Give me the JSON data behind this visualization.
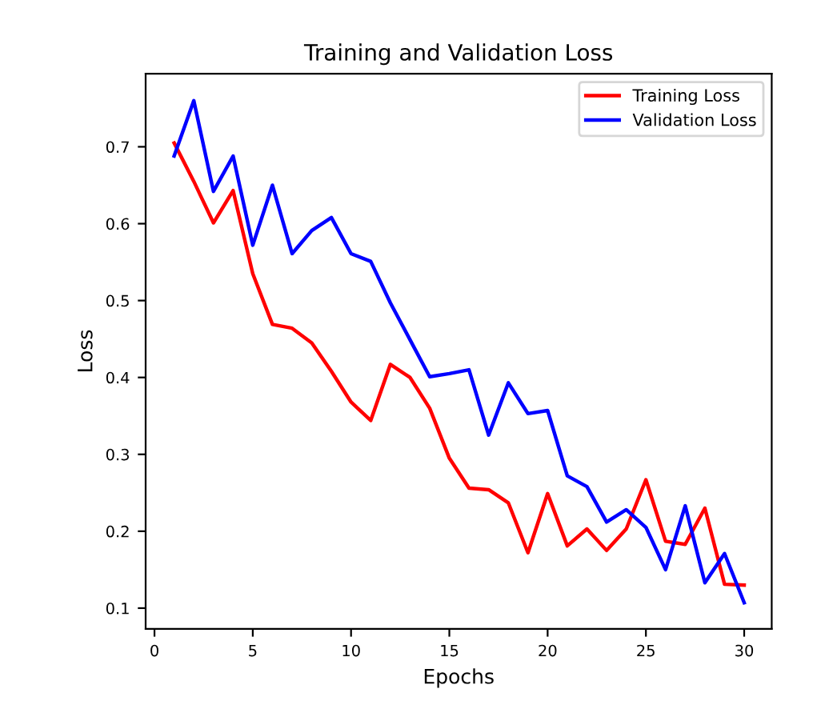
{
  "chart_data": {
    "type": "line",
    "title": "Training and Validation Loss",
    "xlabel": "Epochs",
    "ylabel": "Loss",
    "x": [
      1,
      2,
      3,
      4,
      5,
      6,
      7,
      8,
      9,
      10,
      11,
      12,
      13,
      14,
      15,
      16,
      17,
      18,
      19,
      20,
      21,
      22,
      23,
      24,
      25,
      26,
      27,
      28,
      29,
      30
    ],
    "series": [
      {
        "name": "Training Loss",
        "color": "#ff0000",
        "values": [
          0.705,
          0.655,
          0.601,
          0.643,
          0.535,
          0.469,
          0.464,
          0.445,
          0.408,
          0.368,
          0.344,
          0.417,
          0.4,
          0.36,
          0.295,
          0.256,
          0.254,
          0.237,
          0.172,
          0.249,
          0.181,
          0.203,
          0.175,
          0.203,
          0.267,
          0.187,
          0.183,
          0.23,
          0.131,
          0.13
        ]
      },
      {
        "name": "Validation Loss",
        "color": "#0000ff",
        "values": [
          0.688,
          0.76,
          0.642,
          0.688,
          0.572,
          0.65,
          0.561,
          0.591,
          0.608,
          0.561,
          0.551,
          0.497,
          0.449,
          0.401,
          0.405,
          0.41,
          0.325,
          0.393,
          0.353,
          0.357,
          0.272,
          0.258,
          0.212,
          0.228,
          0.205,
          0.15,
          0.233,
          0.133,
          0.171,
          0.107
        ]
      }
    ],
    "xlim": [
      -0.45,
      31.4
    ],
    "ylim": [
      0.073,
      0.795
    ],
    "xticks": [
      0,
      5,
      10,
      15,
      20,
      25,
      30
    ],
    "yticks": [
      0.1,
      0.2,
      0.3,
      0.4,
      0.5,
      0.6,
      0.7
    ],
    "grid": false,
    "legend": "top right",
    "marker": "none",
    "line_style": "solid"
  }
}
